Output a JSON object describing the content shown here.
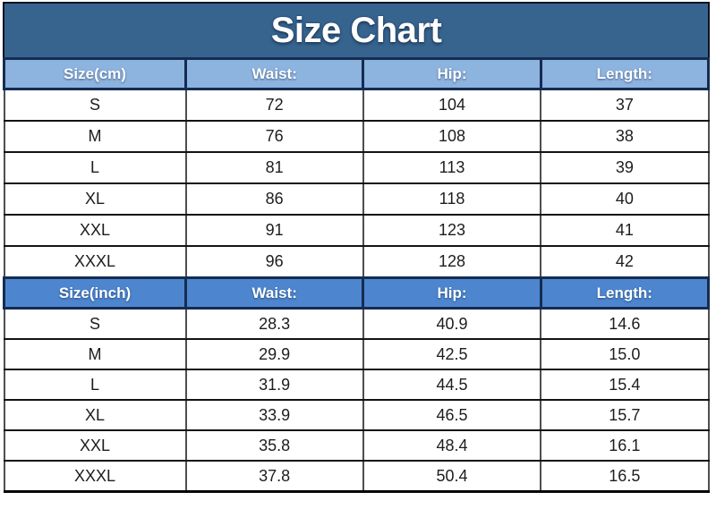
{
  "title": "Size Chart",
  "colors": {
    "title_bg": "#36648f",
    "header_cm_bg": "#8db3df",
    "header_inch_bg": "#4d86cf",
    "grid_border": "#131316",
    "header_border": "#152c52",
    "header_text": "#ffffff",
    "data_text": "#1d1d1f"
  },
  "chart_data": [
    {
      "type": "table",
      "id": "cm",
      "title": "Size Chart",
      "columns": [
        "Size(cm)",
        "Waist:",
        "Hip:",
        "Length:"
      ],
      "rows": [
        [
          "S",
          "72",
          "104",
          "37"
        ],
        [
          "M",
          "76",
          "108",
          "38"
        ],
        [
          "L",
          "81",
          "113",
          "39"
        ],
        [
          "XL",
          "86",
          "118",
          "40"
        ],
        [
          "XXL",
          "91",
          "123",
          "41"
        ],
        [
          "XXXL",
          "96",
          "128",
          "42"
        ]
      ]
    },
    {
      "type": "table",
      "id": "inch",
      "title": "Size Chart",
      "columns": [
        "Size(inch)",
        "Waist:",
        "Hip:",
        "Length:"
      ],
      "rows": [
        [
          "S",
          "28.3",
          "40.9",
          "14.6"
        ],
        [
          "M",
          "29.9",
          "42.5",
          "15.0"
        ],
        [
          "L",
          "31.9",
          "44.5",
          "15.4"
        ],
        [
          "XL",
          "33.9",
          "46.5",
          "15.7"
        ],
        [
          "XXL",
          "35.8",
          "48.4",
          "16.1"
        ],
        [
          "XXXL",
          "37.8",
          "50.4",
          "16.5"
        ]
      ]
    }
  ]
}
